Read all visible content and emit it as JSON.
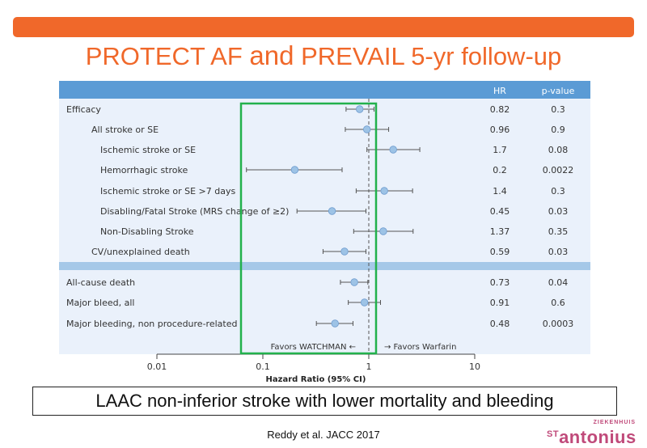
{
  "slide": {
    "title_part1": "PROTECT AF ",
    "title_part2": "and",
    "title_part3": " PREVAIL 5-yr follow-up",
    "conclusion": "LAAC non-inferior stroke with lower mortality and bleeding",
    "citation": "Reddy et al. JACC 2017",
    "logo_small": "ZIEKENHUIS",
    "logo_st": "ST",
    "logo_name": "antonius"
  },
  "colors": {
    "accent_orange": "#f0682a",
    "header_blue": "#5b9bd5",
    "panel_blue": "#eaf1fb",
    "marker_blue": "#9dc3e6",
    "highlight_green": "#22b14c",
    "logo_magenta": "#c04a7a"
  },
  "chart_data": {
    "type": "forest",
    "columns": {
      "hr": "HR",
      "pvalue": "p-value"
    },
    "xlabel": "Hazard Ratio (95% CI)",
    "xscale": "log",
    "xlim": [
      0.01,
      10
    ],
    "xticks": [
      "0.01",
      "0.1",
      "1",
      "10"
    ],
    "reference_line": 1,
    "favors_left": "Favors WATCHMAN ←",
    "favors_right": "→ Favors Warfarin",
    "groups": [
      {
        "rows": [
          {
            "label": "Efficacy",
            "indent": 0,
            "hr": 0.82,
            "lo": 0.61,
            "hi": 1.12,
            "hr_text": "0.82",
            "p_text": "0.3"
          },
          {
            "label": "All stroke or SE",
            "indent": 1,
            "hr": 0.96,
            "lo": 0.6,
            "hi": 1.54,
            "hr_text": "0.96",
            "p_text": "0.9"
          },
          {
            "label": "Ischemic stroke or SE",
            "indent": 2,
            "hr": 1.7,
            "lo": 0.96,
            "hi": 3.03,
            "hr_text": "1.7",
            "p_text": "0.08"
          },
          {
            "label": "Hemorrhagic stroke",
            "indent": 2,
            "hr": 0.2,
            "lo": 0.07,
            "hi": 0.56,
            "hr_text": "0.2",
            "p_text": "0.0022"
          },
          {
            "label": "Ischemic stroke or SE >7 days",
            "indent": 2,
            "hr": 1.4,
            "lo": 0.76,
            "hi": 2.59,
            "hr_text": "1.4",
            "p_text": "0.3"
          },
          {
            "label": "Disabling/Fatal Stroke (MRS change of ≥2)",
            "indent": 2,
            "hr": 0.45,
            "lo": 0.21,
            "hi": 0.94,
            "hr_text": "0.45",
            "p_text": "0.03"
          },
          {
            "label": "Non-Disabling Stroke",
            "indent": 2,
            "hr": 1.37,
            "lo": 0.72,
            "hi": 2.62,
            "hr_text": "1.37",
            "p_text": "0.35"
          },
          {
            "label": "CV/unexplained death",
            "indent": 1,
            "hr": 0.59,
            "lo": 0.37,
            "hi": 0.94,
            "hr_text": "0.59",
            "p_text": "0.03"
          }
        ]
      },
      {
        "rows": [
          {
            "label": "All-cause death",
            "indent": 0,
            "hr": 0.73,
            "lo": 0.54,
            "hi": 0.98,
            "hr_text": "0.73",
            "p_text": "0.04"
          },
          {
            "label": "Major bleed, all",
            "indent": 0,
            "hr": 0.91,
            "lo": 0.64,
            "hi": 1.29,
            "hr_text": "0.91",
            "p_text": "0.6"
          },
          {
            "label": "Major bleeding, non procedure-related",
            "indent": 0,
            "hr": 0.48,
            "lo": 0.32,
            "hi": 0.71,
            "hr_text": "0.48",
            "p_text": "0.0003"
          }
        ]
      }
    ]
  }
}
